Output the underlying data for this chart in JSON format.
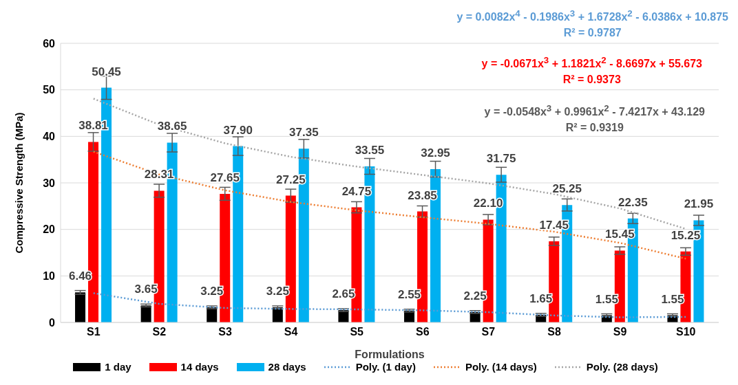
{
  "chart_data": {
    "type": "bar",
    "xlabel": "Formulations",
    "ylabel": "Compressive Strength (MPa)",
    "categories": [
      "S1",
      "S2",
      "S3",
      "S4",
      "S5",
      "S6",
      "S7",
      "S8",
      "S9",
      "S10"
    ],
    "series": [
      {
        "name": "1 day",
        "color": "#000000",
        "values": [
          6.46,
          3.65,
          3.25,
          3.25,
          2.65,
          2.55,
          2.25,
          1.65,
          1.55,
          1.55
        ],
        "errors": [
          0.4,
          0.3,
          0.3,
          0.3,
          0.3,
          0.3,
          0.3,
          0.3,
          0.3,
          0.3
        ],
        "value_labels": [
          "6.46",
          "3.65",
          "3.25",
          "3.25",
          "2.65",
          "2.55",
          "2.25",
          "1.65",
          "1.55",
          "1.55"
        ]
      },
      {
        "name": "14 days",
        "color": "#ff0000",
        "values": [
          38.81,
          28.31,
          27.65,
          27.25,
          24.75,
          23.85,
          22.1,
          17.45,
          15.45,
          15.25
        ],
        "errors": [
          2,
          1.4,
          1.4,
          1.4,
          1.2,
          1.2,
          1.1,
          0.9,
          0.8,
          0.8
        ],
        "value_labels": [
          "38.81",
          "28.31",
          "27.65",
          "27.25",
          "24.75",
          "23.85",
          "22.10",
          "17.45",
          "15.45",
          "15.25"
        ]
      },
      {
        "name": "28 days",
        "color": "#00b0f0",
        "values": [
          50.45,
          38.65,
          37.9,
          37.35,
          33.55,
          32.95,
          31.75,
          25.25,
          22.35,
          21.95
        ],
        "errors": [
          2.5,
          2,
          2,
          2,
          1.7,
          1.7,
          1.6,
          1.3,
          1.1,
          1.1
        ],
        "value_labels": [
          "50.45",
          "38.65",
          "37.90",
          "37.35",
          "33.55",
          "32.95",
          "31.75",
          "25.25",
          "22.35",
          "21.95"
        ]
      },
      {
        "name": "Poly. (1 day)",
        "type": "line",
        "line_style": "dotted",
        "color": "#5b9bd5",
        "values": [
          6.3,
          4.0,
          3.1,
          2.9,
          2.8,
          2.6,
          2.2,
          1.5,
          1.1,
          1.2
        ]
      },
      {
        "name": "Poly. (14 days)",
        "type": "line",
        "line_style": "dotted",
        "color": "#ed7d31",
        "values": [
          36.7,
          31.8,
          28.4,
          25.9,
          24.1,
          22.6,
          21.2,
          19.5,
          17.1,
          13.7
        ]
      },
      {
        "name": "Poly. (28 days)",
        "type": "line",
        "line_style": "dotted",
        "color": "#a5a5a5",
        "values": [
          48.1,
          42.5,
          38.5,
          35.6,
          33.5,
          31.7,
          29.9,
          27.6,
          24.5,
          20.1
        ]
      }
    ],
    "ylim": [
      0,
      60
    ],
    "yticks": [
      0,
      10,
      20,
      30,
      40,
      50,
      60
    ],
    "grid": "y",
    "legend": "bottom",
    "annotations": [
      "y = 0.0082x$^{4}$ - 0.1986x$^{3}$ + 1.6728x$^{2}$ - 6.0386x + 10.875\nR² = 0.9787",
      "y = -0.0671x$^{3}$ + 1.1821x$^{2}$ - 8.6697x + 55.673\nR² = 0.9373",
      "y = -0.0548x$^{3}$ + 0.9961x$^{2}$ - 7.4217x + 43.129\nR² = 0.9319"
    ]
  }
}
